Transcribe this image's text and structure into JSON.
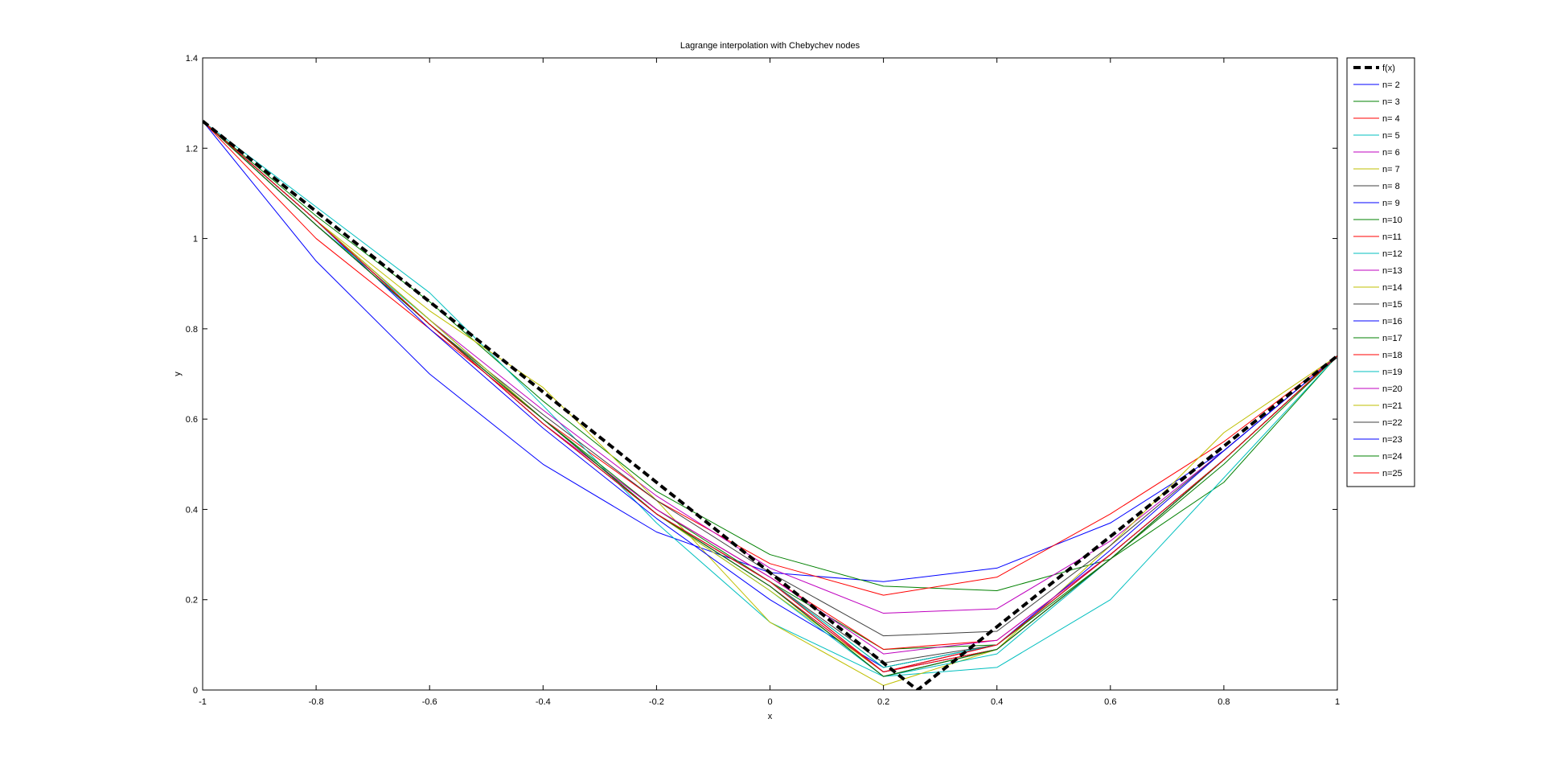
{
  "chart_data": {
    "type": "line",
    "title": "Lagrange interpolation with Chebychev nodes",
    "xlabel": "x",
    "ylabel": "y",
    "xlim": [
      -1,
      1
    ],
    "ylim": [
      0,
      1.4
    ],
    "xticks": [
      -1,
      -0.8,
      -0.6,
      -0.4,
      -0.2,
      0,
      0.2,
      0.4,
      0.6,
      0.8,
      1
    ],
    "xtick_labels": [
      "-1",
      "-0.8",
      "-0.6",
      "-0.4",
      "-0.2",
      "0",
      "0.2",
      "0.4",
      "0.6",
      "0.8",
      "1"
    ],
    "yticks": [
      0,
      0.2,
      0.4,
      0.6,
      0.8,
      1,
      1.2,
      1.4
    ],
    "ytick_labels": [
      "0",
      "0.2",
      "0.4",
      "0.6",
      "0.8",
      "1",
      "1.2",
      "1.4"
    ],
    "grid": false,
    "legend_position": "outside-top-right",
    "target_function": {
      "name": "f(x)",
      "color": "#000000",
      "style": "dashed-thick",
      "x": [
        -1,
        -0.5,
        0,
        0.26,
        0.5,
        1
      ],
      "y": [
        1.26,
        0.76,
        0.26,
        0.0,
        0.24,
        0.74
      ]
    },
    "series": [
      {
        "name": "n= 2",
        "color": "#0000ff",
        "x": [
          -1,
          -0.8,
          -0.6,
          -0.4,
          -0.2,
          0,
          0.2,
          0.4,
          0.6,
          0.8,
          1
        ],
        "y": [
          1.26,
          0.95,
          0.7,
          0.5,
          0.35,
          0.26,
          0.24,
          0.27,
          0.37,
          0.53,
          0.74
        ]
      },
      {
        "name": "n= 3",
        "color": "#008000",
        "x": [
          -1,
          -0.8,
          -0.6,
          -0.4,
          -0.2,
          0,
          0.2,
          0.4,
          0.6,
          0.8,
          1
        ],
        "y": [
          1.26,
          1.05,
          0.86,
          0.64,
          0.44,
          0.3,
          0.23,
          0.22,
          0.29,
          0.46,
          0.74
        ]
      },
      {
        "name": "n= 4",
        "color": "#ff0000",
        "x": [
          -1,
          -0.8,
          -0.6,
          -0.4,
          -0.2,
          0,
          0.2,
          0.4,
          0.6,
          0.8,
          1
        ],
        "y": [
          1.26,
          1.0,
          0.8,
          0.6,
          0.42,
          0.28,
          0.21,
          0.25,
          0.39,
          0.55,
          0.74
        ]
      },
      {
        "name": "n= 5",
        "color": "#00bfbf",
        "x": [
          -1,
          -0.8,
          -0.6,
          -0.4,
          -0.2,
          0,
          0.2,
          0.4,
          0.6,
          0.8,
          1
        ],
        "y": [
          1.26,
          1.07,
          0.88,
          0.63,
          0.37,
          0.15,
          0.03,
          0.05,
          0.2,
          0.47,
          0.74
        ]
      },
      {
        "name": "n= 6",
        "color": "#bf00bf",
        "x": [
          -1,
          -0.8,
          -0.6,
          -0.4,
          -0.2,
          0,
          0.2,
          0.4,
          0.6,
          0.8,
          1
        ],
        "y": [
          1.26,
          1.04,
          0.82,
          0.62,
          0.43,
          0.27,
          0.17,
          0.18,
          0.33,
          0.53,
          0.74
        ]
      },
      {
        "name": "n= 7",
        "color": "#bfbf00",
        "x": [
          -1,
          -0.8,
          -0.6,
          -0.4,
          -0.2,
          0,
          0.2,
          0.4,
          0.6,
          0.8,
          1
        ],
        "y": [
          1.26,
          1.04,
          0.84,
          0.67,
          0.42,
          0.15,
          0.01,
          0.09,
          0.32,
          0.57,
          0.74
        ]
      },
      {
        "name": "n= 8",
        "color": "#404040",
        "x": [
          -1,
          -0.8,
          -0.6,
          -0.4,
          -0.2,
          0,
          0.2,
          0.4,
          0.6,
          0.8,
          1
        ],
        "y": [
          1.26,
          1.04,
          0.81,
          0.61,
          0.42,
          0.26,
          0.12,
          0.13,
          0.32,
          0.53,
          0.74
        ]
      },
      {
        "name": "n= 9",
        "color": "#0000ff",
        "x": [
          -1,
          -0.8,
          -0.6,
          -0.4,
          -0.2,
          0,
          0.2,
          0.4,
          0.6,
          0.8,
          1
        ],
        "y": [
          1.26,
          1.04,
          0.8,
          0.58,
          0.38,
          0.2,
          0.05,
          0.1,
          0.31,
          0.53,
          0.74
        ]
      },
      {
        "name": "n=10",
        "color": "#008000",
        "x": [
          -1,
          -0.8,
          -0.6,
          -0.4,
          -0.2,
          0,
          0.2,
          0.4,
          0.6,
          0.8,
          1
        ],
        "y": [
          1.26,
          1.04,
          0.82,
          0.6,
          0.4,
          0.24,
          0.09,
          0.1,
          0.29,
          0.5,
          0.74
        ]
      },
      {
        "name": "n=11",
        "color": "#ff0000",
        "x": [
          -1,
          -0.8,
          -0.6,
          -0.4,
          -0.2,
          0,
          0.2,
          0.4,
          0.6,
          0.8,
          1
        ],
        "y": [
          1.26,
          1.04,
          0.81,
          0.59,
          0.4,
          0.25,
          0.09,
          0.11,
          0.3,
          0.51,
          0.74
        ]
      },
      {
        "name": "n=12",
        "color": "#00bfbf",
        "x": [
          -1,
          -0.8,
          -0.6,
          -0.4,
          -0.2,
          0,
          0.2,
          0.4,
          0.6,
          0.8,
          1
        ],
        "y": [
          1.26,
          1.03,
          0.82,
          0.6,
          0.39,
          0.22,
          0.03,
          0.08,
          0.29,
          0.51,
          0.74
        ]
      },
      {
        "name": "n=13",
        "color": "#bf00bf",
        "x": [
          -1,
          -0.8,
          -0.6,
          -0.4,
          -0.2,
          0,
          0.2,
          0.4,
          0.6,
          0.8,
          1
        ],
        "y": [
          1.26,
          1.04,
          0.81,
          0.59,
          0.4,
          0.25,
          0.08,
          0.11,
          0.3,
          0.51,
          0.74
        ]
      },
      {
        "name": "n=14",
        "color": "#bfbf00",
        "x": [
          -1,
          -0.8,
          -0.6,
          -0.4,
          -0.2,
          0,
          0.2,
          0.4,
          0.6,
          0.8,
          1
        ],
        "y": [
          1.26,
          1.04,
          0.82,
          0.6,
          0.39,
          0.22,
          0.04,
          0.09,
          0.29,
          0.51,
          0.74
        ]
      },
      {
        "name": "n=15",
        "color": "#404040",
        "x": [
          -1,
          -0.8,
          -0.6,
          -0.4,
          -0.2,
          0,
          0.2,
          0.4,
          0.6,
          0.8,
          1
        ],
        "y": [
          1.26,
          1.04,
          0.81,
          0.59,
          0.39,
          0.24,
          0.06,
          0.1,
          0.3,
          0.51,
          0.74
        ]
      },
      {
        "name": "n=16",
        "color": "#0000ff",
        "x": [
          -1,
          -0.8,
          -0.6,
          -0.4,
          -0.2,
          0,
          0.2,
          0.4,
          0.6,
          0.8,
          1
        ],
        "y": [
          1.26,
          1.03,
          0.81,
          0.6,
          0.39,
          0.23,
          0.04,
          0.09,
          0.29,
          0.51,
          0.74
        ]
      },
      {
        "name": "n=17",
        "color": "#008000",
        "x": [
          -1,
          -0.8,
          -0.6,
          -0.4,
          -0.2,
          0,
          0.2,
          0.4,
          0.6,
          0.8,
          1
        ],
        "y": [
          1.26,
          1.04,
          0.81,
          0.59,
          0.39,
          0.24,
          0.05,
          0.1,
          0.3,
          0.51,
          0.74
        ]
      },
      {
        "name": "n=18",
        "color": "#ff0000",
        "x": [
          -1,
          -0.8,
          -0.6,
          -0.4,
          -0.2,
          0,
          0.2,
          0.4,
          0.6,
          0.8,
          1
        ],
        "y": [
          1.26,
          1.03,
          0.81,
          0.6,
          0.39,
          0.23,
          0.04,
          0.09,
          0.29,
          0.51,
          0.74
        ]
      },
      {
        "name": "n=19",
        "color": "#00bfbf",
        "x": [
          -1,
          -0.8,
          -0.6,
          -0.4,
          -0.2,
          0,
          0.2,
          0.4,
          0.6,
          0.8,
          1
        ],
        "y": [
          1.26,
          1.04,
          0.81,
          0.59,
          0.39,
          0.24,
          0.05,
          0.1,
          0.3,
          0.51,
          0.74
        ]
      },
      {
        "name": "n=20",
        "color": "#bf00bf",
        "x": [
          -1,
          -0.8,
          -0.6,
          -0.4,
          -0.2,
          0,
          0.2,
          0.4,
          0.6,
          0.8,
          1
        ],
        "y": [
          1.26,
          1.03,
          0.81,
          0.6,
          0.39,
          0.23,
          0.03,
          0.09,
          0.29,
          0.51,
          0.74
        ]
      },
      {
        "name": "n=21",
        "color": "#bfbf00",
        "x": [
          -1,
          -0.8,
          -0.6,
          -0.4,
          -0.2,
          0,
          0.2,
          0.4,
          0.6,
          0.8,
          1
        ],
        "y": [
          1.26,
          1.04,
          0.81,
          0.59,
          0.39,
          0.24,
          0.04,
          0.1,
          0.3,
          0.51,
          0.74
        ]
      },
      {
        "name": "n=22",
        "color": "#404040",
        "x": [
          -1,
          -0.8,
          -0.6,
          -0.4,
          -0.2,
          0,
          0.2,
          0.4,
          0.6,
          0.8,
          1
        ],
        "y": [
          1.26,
          1.03,
          0.81,
          0.6,
          0.39,
          0.23,
          0.03,
          0.09,
          0.29,
          0.51,
          0.74
        ]
      },
      {
        "name": "n=23",
        "color": "#0000ff",
        "x": [
          -1,
          -0.8,
          -0.6,
          -0.4,
          -0.2,
          0,
          0.2,
          0.4,
          0.6,
          0.8,
          1
        ],
        "y": [
          1.26,
          1.04,
          0.81,
          0.59,
          0.39,
          0.24,
          0.04,
          0.1,
          0.3,
          0.51,
          0.74
        ]
      },
      {
        "name": "n=24",
        "color": "#008000",
        "x": [
          -1,
          -0.8,
          -0.6,
          -0.4,
          -0.2,
          0,
          0.2,
          0.4,
          0.6,
          0.8,
          1
        ],
        "y": [
          1.26,
          1.03,
          0.81,
          0.6,
          0.39,
          0.23,
          0.03,
          0.09,
          0.29,
          0.51,
          0.74
        ]
      },
      {
        "name": "n=25",
        "color": "#ff0000",
        "x": [
          -1,
          -0.8,
          -0.6,
          -0.4,
          -0.2,
          0,
          0.2,
          0.4,
          0.6,
          0.8,
          1
        ],
        "y": [
          1.26,
          1.04,
          0.81,
          0.59,
          0.39,
          0.24,
          0.04,
          0.1,
          0.3,
          0.51,
          0.74
        ]
      }
    ]
  }
}
